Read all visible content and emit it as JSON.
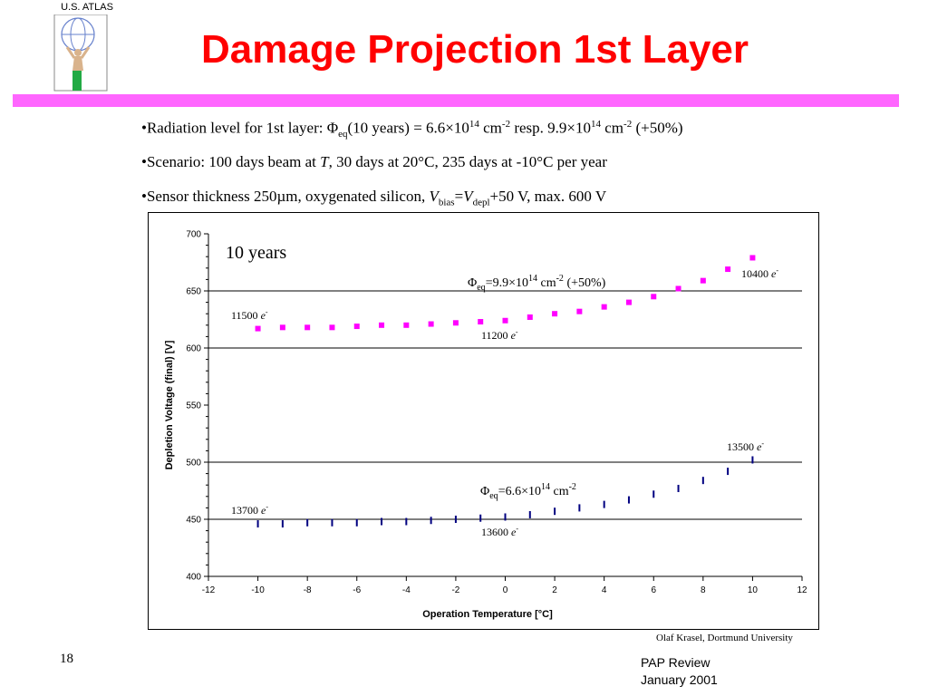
{
  "header": {
    "logo_text": "U.S. ATLAS",
    "title": "Damage Projection 1st Layer"
  },
  "bullets": [
    {
      "parts": [
        "•Radiation level for 1st layer:  Φ",
        "eq",
        "(10 years) = 6.6×10",
        "14",
        " cm",
        "-2",
        " resp. 9.9×10",
        "14",
        " cm",
        "-2",
        " (+50%)"
      ]
    },
    {
      "parts": [
        "•Scenario: 100 days beam at ",
        "T",
        ", 30 days at 20°C, 235 days at -10°C per year"
      ]
    },
    {
      "parts": [
        "•Sensor thickness 250µm, oxygenated silicon, ",
        "V",
        "bias",
        "=",
        "V",
        "depl",
        "+50 V, max. 600 V"
      ]
    }
  ],
  "chart_data": {
    "type": "scatter",
    "xlabel": "Operation Temperature [°C]",
    "ylabel": "Depletion Voltage (final) [V]",
    "xlim": [
      -12,
      12
    ],
    "ylim": [
      400,
      700
    ],
    "xticks": [
      "-12",
      "-10",
      "-8",
      "-6",
      "-4",
      "-2",
      "0",
      "2",
      "4",
      "6",
      "8",
      "10",
      "12"
    ],
    "yticks": [
      "400",
      "450",
      "500",
      "550",
      "600",
      "650",
      "700"
    ],
    "grid": "horizontal at 450, 500, 600, 650",
    "inset_label": "10 years",
    "series": [
      {
        "color": "#ff00ff",
        "marker": "square",
        "x": [
          -10,
          -9,
          -8,
          -7,
          -6,
          -5,
          -4,
          -3,
          -2,
          -1,
          0,
          1,
          2,
          3,
          4,
          5,
          6,
          7,
          8,
          9,
          10
        ],
        "y": [
          617,
          618,
          618,
          618,
          619,
          620,
          620,
          621,
          622,
          623,
          624,
          627,
          630,
          632,
          636,
          640,
          645,
          652,
          659,
          669,
          679
        ]
      },
      {
        "color": "#000080",
        "marker": "dash",
        "x": [
          -10,
          -9,
          -8,
          -7,
          -6,
          -5,
          -4,
          -3,
          -2,
          -1,
          0,
          1,
          2,
          3,
          4,
          5,
          6,
          7,
          8,
          9,
          10
        ],
        "y": [
          446,
          446,
          447,
          447,
          447,
          448,
          448,
          449,
          450,
          451,
          452,
          454,
          457,
          460,
          463,
          467,
          472,
          477,
          484,
          492,
          502
        ]
      }
    ],
    "annotations": {
      "upper_flux": {
        "sym": "Φ",
        "sub": "eq",
        "text1": "=9.9×10",
        "sup1": "14",
        "text2": " cm",
        "sup2": "-2",
        "text3": " (+50%)"
      },
      "lower_flux": {
        "sym": "Φ",
        "sub": "eq",
        "text1": "=6.6×10",
        "sup1": "14",
        "text2": " cm",
        "sup2": "-2"
      },
      "upper_left_electrons": {
        "value": "11500 ",
        "unit": "e",
        "sup": "-"
      },
      "upper_mid_electrons": {
        "value": "11200 ",
        "unit": "e",
        "sup": "-"
      },
      "upper_right_electrons": {
        "value": "10400 ",
        "unit": "e",
        "sup": "-"
      },
      "lower_left_electrons": {
        "value": "13700 ",
        "unit": "e",
        "sup": "-"
      },
      "lower_mid_electrons": {
        "value": "13600 ",
        "unit": "e",
        "sup": "-"
      },
      "lower_right_electrons": {
        "value": "13500 ",
        "unit": "e",
        "sup": "-"
      }
    }
  },
  "credit": "Olaf Krasel, Dortmund University",
  "footer": {
    "page_number": "18",
    "line1": "PAP Review",
    "line2": "January 2001"
  }
}
